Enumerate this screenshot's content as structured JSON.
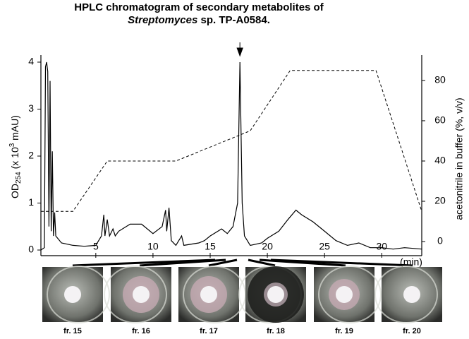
{
  "chart_data": {
    "type": "line",
    "title": "HPLC chromatogram of secondary metabolites of",
    "title_line2_italic": "Streptomyces",
    "title_line2_rest": "sp. TP-A0584.",
    "y_label_parts": [
      "OD",
      "254",
      " (x 10",
      "3",
      " mAU)"
    ],
    "y2_label": "acetonitrile in buffer (%, v/v)",
    "x_label": "(min)",
    "xlim": [
      0.2,
      33.5
    ],
    "xticks": [
      5,
      10,
      15,
      20,
      25,
      30
    ],
    "ylim": [
      -0.12,
      4.15
    ],
    "yticks": [
      0,
      1,
      2,
      3,
      4
    ],
    "y2lim": [
      -7,
      92.6
    ],
    "y2ticks": [
      0,
      20,
      40,
      60,
      80
    ],
    "arrow_x": 17.6,
    "series": [
      {
        "color": "#000000",
        "x": [
          0.2,
          0.5,
          0.6,
          0.7,
          0.8,
          0.9,
          1.0,
          1.1,
          1.2,
          1.3,
          1.4,
          1.5,
          2,
          3,
          4,
          5,
          5.5,
          5.7,
          5.8,
          6.0,
          6.2,
          6.5,
          6.7,
          7,
          8,
          9,
          10,
          10.8,
          11.1,
          11.2,
          11.4,
          11.6,
          12,
          12.5,
          12.7,
          14,
          14.5,
          15,
          16,
          16.5,
          17,
          17.4,
          17.6,
          17.8,
          18,
          18.5,
          19.5,
          20,
          21,
          21.8,
          22.5,
          23,
          24,
          25,
          26,
          27,
          28,
          29,
          30,
          31,
          32,
          33.5
        ],
        "values": [
          0,
          0.05,
          3.9,
          4.0,
          3.8,
          0.5,
          3.6,
          0.4,
          2.1,
          0.3,
          0.8,
          0.3,
          0.15,
          0.1,
          0.08,
          0.1,
          0.3,
          0.75,
          0.3,
          0.65,
          0.3,
          0.45,
          0.3,
          0.4,
          0.55,
          0.55,
          0.35,
          0.5,
          0.85,
          0.4,
          0.9,
          0.2,
          0.1,
          0.3,
          0.1,
          0.15,
          0.2,
          0.3,
          0.45,
          0.35,
          0.5,
          1.0,
          4.0,
          1.0,
          0.3,
          0.1,
          0.15,
          0.25,
          0.4,
          0.65,
          0.85,
          0.75,
          0.6,
          0.4,
          0.2,
          0.1,
          0.15,
          0.05,
          0.05,
          0.02,
          0.05,
          0.02
        ]
      },
      {
        "color": "#000000",
        "axis": "y2",
        "dash": true,
        "x": [
          0.2,
          3,
          6,
          12,
          18.5,
          22,
          29.5,
          33.5
        ],
        "values": [
          15,
          15,
          40,
          40,
          55,
          85,
          85,
          15
        ]
      }
    ]
  },
  "fractions": [
    "fr. 15",
    "fr. 16",
    "fr. 17",
    "fr. 18",
    "fr. 19",
    "fr. 20"
  ]
}
